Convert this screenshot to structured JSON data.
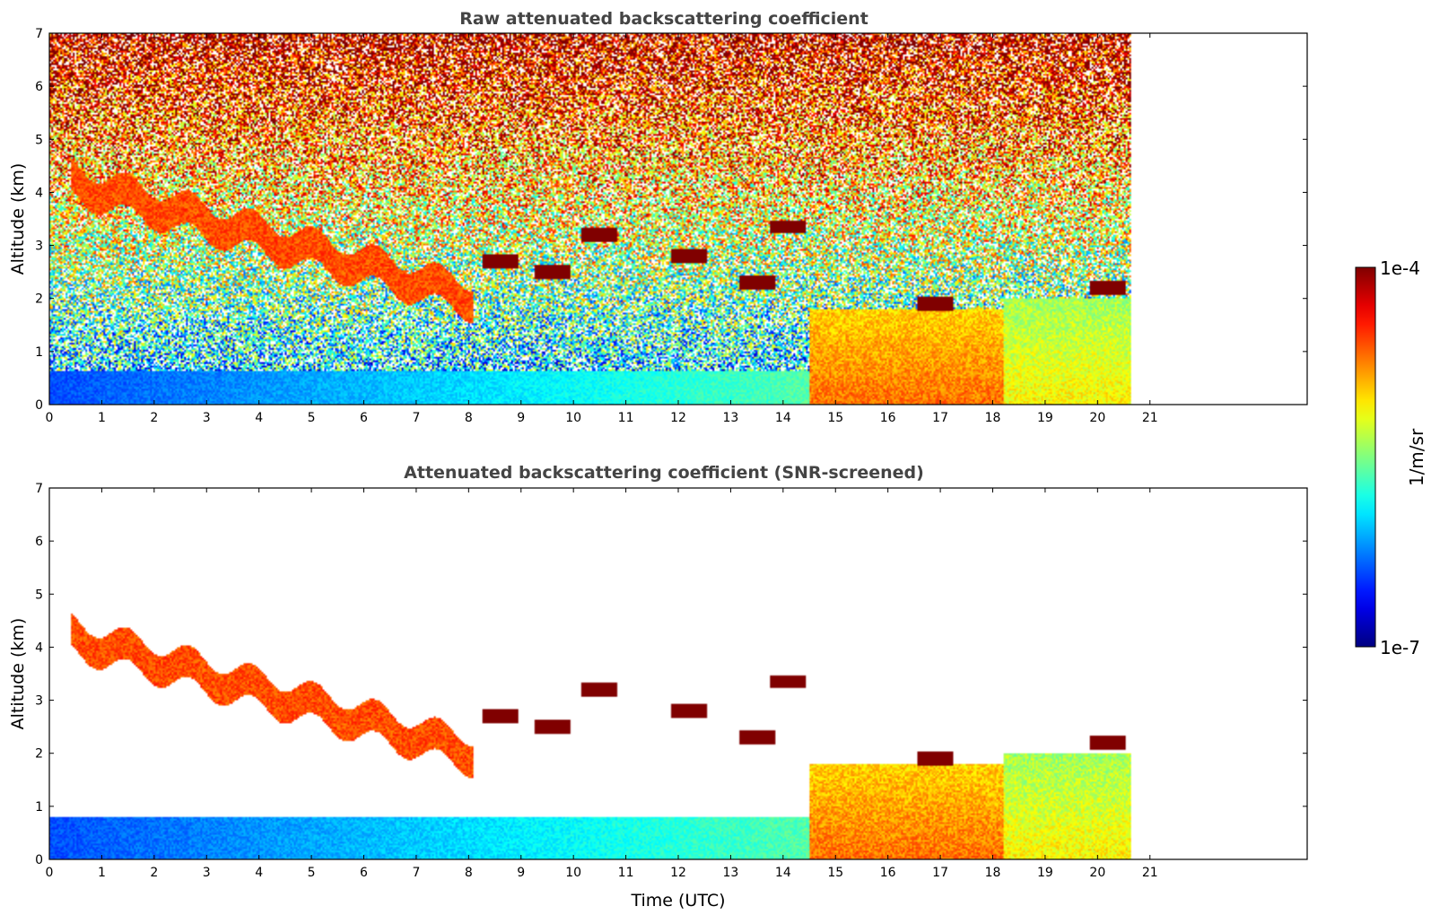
{
  "chart_data": [
    {
      "type": "heatmap",
      "title": "Raw attenuated backscattering coefficient",
      "xlabel": "",
      "ylabel": "Altitude (km)",
      "xlim": [
        0,
        24
      ],
      "ylim": [
        0,
        7
      ],
      "xticks": [
        "0",
        "1",
        "2",
        "3",
        "4",
        "5",
        "6",
        "7",
        "8",
        "9",
        "10",
        "11",
        "12",
        "13",
        "14",
        "15",
        "16",
        "17",
        "18",
        "19",
        "20",
        "21"
      ],
      "yticks": [
        "0",
        "1",
        "2",
        "3",
        "4",
        "5",
        "6",
        "7"
      ],
      "data_end_time": 20.65,
      "noise_level": 1.0,
      "features": [
        {
          "kind": "near_surface_layer",
          "t0": 0,
          "t1": 20.65,
          "top_km": 0.65,
          "log_value": -6.4
        },
        {
          "kind": "elevated_aerosol",
          "t0": 0.4,
          "t1": 8.1,
          "top_start_km": 4.5,
          "top_end_km": 2.3,
          "depth_km": 0.6,
          "log_value": -4.6
        },
        {
          "kind": "cloud",
          "t": 8.6,
          "alt_km": 2.7,
          "log_value": -4.0
        },
        {
          "kind": "cloud",
          "t": 9.6,
          "alt_km": 2.5,
          "log_value": -4.0
        },
        {
          "kind": "cloud",
          "t": 10.5,
          "alt_km": 3.2,
          "log_value": -4.0
        },
        {
          "kind": "cloud",
          "t": 12.2,
          "alt_km": 2.8,
          "log_value": -4.0
        },
        {
          "kind": "cloud",
          "t": 13.5,
          "alt_km": 2.3,
          "log_value": -4.0
        },
        {
          "kind": "cloud",
          "t": 14.1,
          "alt_km": 3.35,
          "log_value": -4.0
        },
        {
          "kind": "cloud",
          "t": 16.9,
          "alt_km": 1.9,
          "log_value": -4.0
        },
        {
          "kind": "cloud",
          "t": 20.2,
          "alt_km": 2.2,
          "log_value": -4.0
        },
        {
          "kind": "boundary_layer",
          "t0": 14.5,
          "t1": 18.2,
          "top_km": 1.8,
          "log_value": -5.0
        },
        {
          "kind": "boundary_layer",
          "t0": 18.2,
          "t1": 20.65,
          "top_km": 2.0,
          "log_value": -5.4
        }
      ]
    },
    {
      "type": "heatmap",
      "title": "Attenuated backscattering coefficient (SNR-screened)",
      "xlabel": "Time (UTC)",
      "ylabel": "Altitude (km)",
      "xlim": [
        0,
        24
      ],
      "ylim": [
        0,
        7
      ],
      "xticks": [
        "0",
        "1",
        "2",
        "3",
        "4",
        "5",
        "6",
        "7",
        "8",
        "9",
        "10",
        "11",
        "12",
        "13",
        "14",
        "15",
        "16",
        "17",
        "18",
        "19",
        "20",
        "21"
      ],
      "yticks": [
        "0",
        "1",
        "2",
        "3",
        "4",
        "5",
        "6",
        "7"
      ],
      "data_end_time": 20.65,
      "noise_level": 0.0,
      "features": [
        {
          "kind": "near_surface_layer",
          "t0": 0,
          "t1": 20.65,
          "top_km": 0.8,
          "log_value": -6.4
        },
        {
          "kind": "elevated_aerosol",
          "t0": 0.4,
          "t1": 8.1,
          "top_start_km": 4.5,
          "top_end_km": 2.3,
          "depth_km": 0.6,
          "log_value": -4.6
        },
        {
          "kind": "cloud",
          "t": 8.6,
          "alt_km": 2.7,
          "log_value": -4.0
        },
        {
          "kind": "cloud",
          "t": 9.6,
          "alt_km": 2.5,
          "log_value": -4.0
        },
        {
          "kind": "cloud",
          "t": 10.5,
          "alt_km": 3.2,
          "log_value": -4.0
        },
        {
          "kind": "cloud",
          "t": 12.2,
          "alt_km": 2.8,
          "log_value": -4.0
        },
        {
          "kind": "cloud",
          "t": 13.5,
          "alt_km": 2.3,
          "log_value": -4.0
        },
        {
          "kind": "cloud",
          "t": 14.1,
          "alt_km": 3.35,
          "log_value": -4.0
        },
        {
          "kind": "cloud",
          "t": 16.9,
          "alt_km": 1.9,
          "log_value": -4.0
        },
        {
          "kind": "cloud",
          "t": 20.2,
          "alt_km": 2.2,
          "log_value": -4.0
        },
        {
          "kind": "boundary_layer",
          "t0": 14.5,
          "t1": 18.2,
          "top_km": 1.8,
          "log_value": -5.0
        },
        {
          "kind": "boundary_layer",
          "t0": 18.2,
          "t1": 20.65,
          "top_km": 2.0,
          "log_value": -5.4
        }
      ]
    }
  ],
  "colorbar": {
    "max_label": "1e-4",
    "min_label": "1e-7",
    "unit_label": "1/m/sr",
    "log_range": [
      -7,
      -4
    ],
    "colormap": "jet"
  }
}
